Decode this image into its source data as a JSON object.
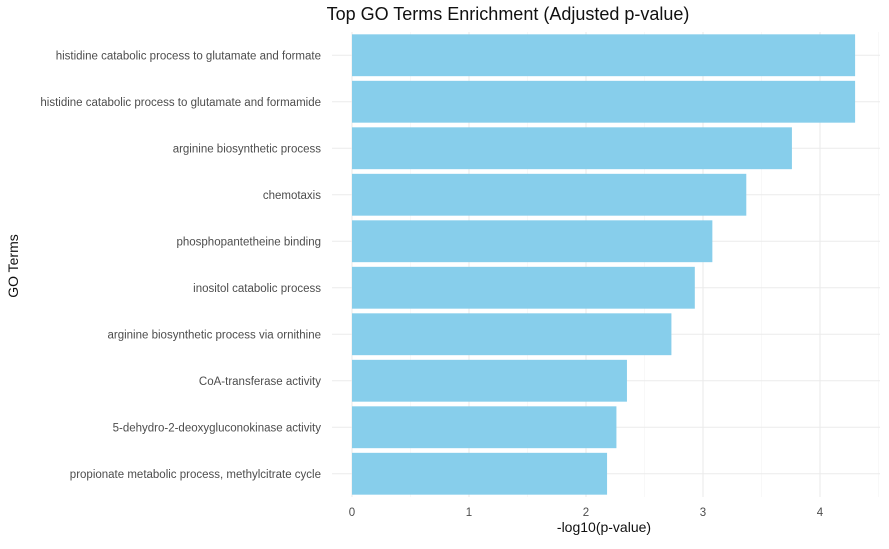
{
  "chart_data": {
    "type": "bar",
    "orientation": "horizontal",
    "title": "Top GO Terms Enrichment (Adjusted p-value)",
    "xlabel": "-log10(p-value)",
    "ylabel": "GO Terms",
    "xlim": [
      0,
      4.55
    ],
    "x_ticks": [
      0,
      1,
      2,
      3,
      4
    ],
    "x_tick_labels": [
      "0",
      "1",
      "2",
      "3",
      "4"
    ],
    "grid": true,
    "bar_color": "#87CEEB",
    "categories": [
      "histidine catabolic process to glutamate and formate",
      "histidine catabolic process to glutamate and formamide",
      "arginine biosynthetic process",
      "chemotaxis",
      "phosphopantetheine binding",
      "inositol catabolic process",
      "arginine biosynthetic process via ornithine",
      "CoA-transferase activity",
      "5-dehydro-2-deoxygluconokinase activity",
      "propionate metabolic process, methylcitrate cycle"
    ],
    "values": [
      4.3,
      4.3,
      3.76,
      3.37,
      3.08,
      2.93,
      2.73,
      2.35,
      2.26,
      2.18
    ]
  }
}
